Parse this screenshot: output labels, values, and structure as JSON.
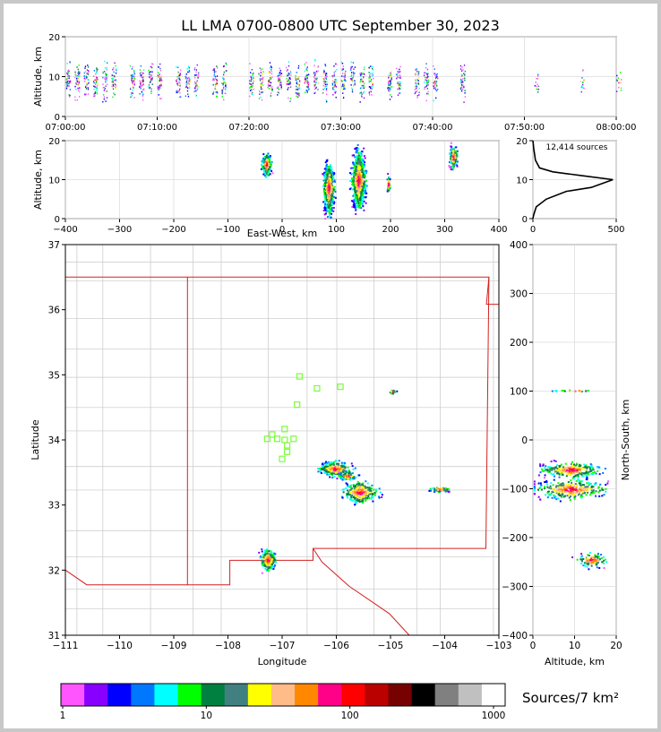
{
  "title": "LL LMA 0700-0800 UTC September 30, 2023",
  "colors": {
    "grid": "#dddddd",
    "county": "#c8c8c8",
    "state": "#d42020",
    "station": "#7cfc3c",
    "axis": "#000000"
  },
  "chart_data": [
    {
      "type": "scatter",
      "name_key": "time-height",
      "ylabel": "Altitude, km",
      "ylim": [
        0,
        20
      ],
      "yticks": [
        "0",
        "10",
        "20"
      ],
      "xticks": [
        "07:00:00",
        "07:10:00",
        "07:20:00",
        "07:30:00",
        "07:40:00",
        "07:50:00",
        "08:00:00"
      ],
      "xlim_minutes": [
        0,
        60
      ],
      "active_minutes": [
        0,
        1,
        2,
        3,
        4,
        5,
        7,
        8,
        9,
        10,
        12,
        13,
        14,
        16,
        17,
        20,
        21,
        22,
        23,
        24,
        25,
        26,
        27,
        28,
        29,
        30,
        31,
        32,
        33,
        35,
        36,
        38,
        39,
        40,
        43,
        51,
        56,
        60
      ]
    },
    {
      "type": "heatmap",
      "name_key": "east-west-altitude",
      "xlabel": "East-West, km",
      "ylabel": "Altitude, km",
      "xlim": [
        -400,
        400
      ],
      "ylim": [
        0,
        20
      ],
      "xticks": [
        "−400",
        "−300",
        "−200",
        "−100",
        "0",
        "100",
        "200",
        "300",
        "400"
      ],
      "yticks": [
        "0",
        "10",
        "20"
      ],
      "clusters": [
        {
          "x": -30,
          "y": 14,
          "w": 12,
          "h": 4
        },
        {
          "x": 85,
          "y": 8,
          "w": 14,
          "h": 9
        },
        {
          "x": 140,
          "y": 10,
          "w": 18,
          "h": 10
        },
        {
          "x": 195,
          "y": 9,
          "w": 4,
          "h": 3
        },
        {
          "x": 315,
          "y": 16,
          "w": 10,
          "h": 4
        }
      ]
    },
    {
      "type": "line",
      "name_key": "altitude-histogram",
      "annotation": "12,414 sources",
      "xlim": [
        0,
        500
      ],
      "ylim": [
        0,
        20
      ],
      "xticks": [
        "0",
        "500"
      ],
      "yticks": [
        "0",
        "10",
        "20"
      ],
      "profile": [
        [
          0,
          0
        ],
        [
          5,
          1
        ],
        [
          20,
          3
        ],
        [
          80,
          5
        ],
        [
          200,
          7
        ],
        [
          350,
          8
        ],
        [
          480,
          10
        ],
        [
          300,
          11
        ],
        [
          120,
          12
        ],
        [
          40,
          13
        ],
        [
          15,
          15
        ],
        [
          5,
          18
        ],
        [
          0,
          20
        ]
      ]
    },
    {
      "type": "map",
      "name_key": "plan-view",
      "xlabel": "Longitude",
      "ylabel": "Latitude",
      "xlim": [
        -111.5,
        -102.8
      ],
      "ylim": [
        30.4,
        37.6
      ],
      "xticks": [
        "−111",
        "−110",
        "−109",
        "−108",
        "−107",
        "−106",
        "−105",
        "−104",
        "−103"
      ],
      "yticks": [
        "31",
        "32",
        "33",
        "34",
        "35",
        "36",
        "37"
      ],
      "stations": [
        [
          -106.8,
          35.17
        ],
        [
          -106.45,
          34.95
        ],
        [
          -105.98,
          34.98
        ],
        [
          -106.85,
          34.65
        ],
        [
          -107.1,
          34.2
        ],
        [
          -107.35,
          34.1
        ],
        [
          -107.45,
          34.02
        ],
        [
          -107.25,
          34.02
        ],
        [
          -107.1,
          34.0
        ],
        [
          -106.92,
          34.02
        ],
        [
          -107.05,
          33.9
        ],
        [
          -107.05,
          33.78
        ],
        [
          -107.15,
          33.65
        ]
      ],
      "clusters": [
        {
          "x": -106.1,
          "y": 33.48,
          "w": 0.45,
          "h": 0.18
        },
        {
          "x": -105.6,
          "y": 33.05,
          "w": 0.5,
          "h": 0.28
        },
        {
          "x": -105.85,
          "y": 33.35,
          "w": 0.25,
          "h": 0.1
        },
        {
          "x": -107.45,
          "y": 31.8,
          "w": 0.22,
          "h": 0.28
        },
        {
          "x": -104.0,
          "y": 33.1,
          "w": 0.3,
          "h": 0.06
        },
        {
          "x": -104.95,
          "y": 34.9,
          "w": 0.1,
          "h": 0.06
        }
      ]
    },
    {
      "type": "heatmap",
      "name_key": "altitude-north-south",
      "xlabel": "Altitude, km",
      "ylabel": "North-South, km",
      "xlim": [
        0,
        20
      ],
      "ylim": [
        -400,
        400
      ],
      "xticks": [
        "0",
        "10",
        "20"
      ],
      "yticks": [
        "−400",
        "−300",
        "−200",
        "−100",
        "0",
        "100",
        "200",
        "300",
        "400"
      ],
      "clusters": [
        {
          "x": 9,
          "y": -60,
          "w": 10,
          "h": 22
        },
        {
          "x": 9,
          "y": -100,
          "w": 12,
          "h": 28
        },
        {
          "x": 14,
          "y": -245,
          "w": 5,
          "h": 20
        },
        {
          "x": 10,
          "y": 102,
          "w": 6,
          "h": 3
        }
      ]
    },
    {
      "type": "colorbar",
      "name_key": "colorbar",
      "label": "Sources/7 km²",
      "ticks": [
        "1",
        "10",
        "100",
        "1000"
      ],
      "colors": [
        "#ff55ff",
        "#8800ff",
        "#0000ff",
        "#0077ff",
        "#00ffff",
        "#00ff00",
        "#008040",
        "#408080",
        "#ffff00",
        "#ffbb88",
        "#ff8800",
        "#ff0088",
        "#ff0000",
        "#bb0000",
        "#770000",
        "#000000",
        "#808080",
        "#c0c0c0",
        "#ffffff"
      ]
    }
  ]
}
